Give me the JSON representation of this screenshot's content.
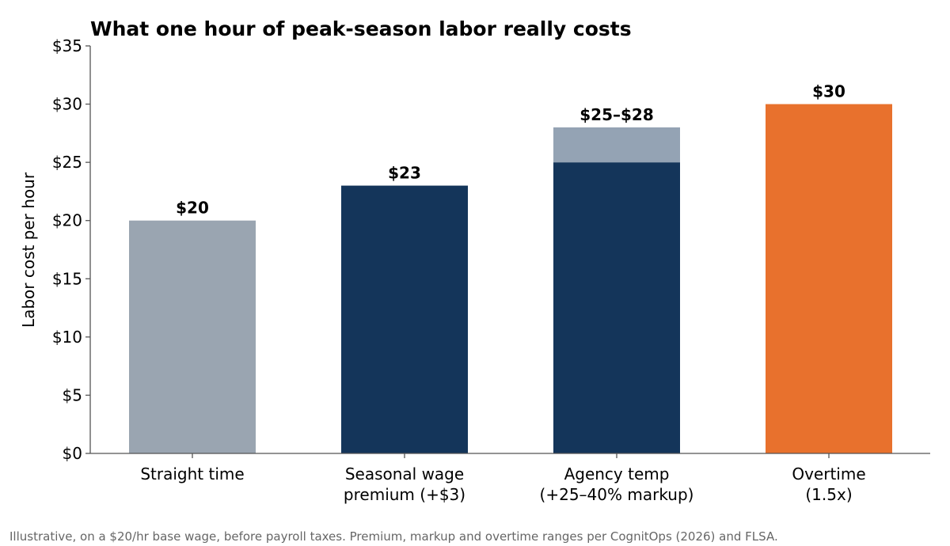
{
  "chart_data": {
    "type": "bar",
    "title": "What one hour of peak-season labor really costs",
    "ylabel": "Labor cost per hour",
    "xlabel": "",
    "ylim": [
      0,
      35
    ],
    "yticks": [
      0,
      5,
      10,
      15,
      20,
      25,
      30,
      35
    ],
    "ytick_labels": [
      "$0",
      "$5",
      "$10",
      "$15",
      "$20",
      "$25",
      "$30",
      "$35"
    ],
    "categories": [
      [
        "Straight time"
      ],
      [
        "Seasonal wage",
        "premium (+$3)"
      ],
      [
        "Agency temp",
        "(+25–40% markup)"
      ],
      [
        "Overtime",
        "(1.5x)"
      ]
    ],
    "bars": [
      {
        "low": 20,
        "high": 20,
        "label": "$20",
        "color": "#9aa5b1"
      },
      {
        "low": 23,
        "high": 23,
        "label": "$23",
        "color": "#14355a"
      },
      {
        "low": 25,
        "high": 28,
        "label": "$25–$28",
        "color": "#14355a",
        "range_color": "#94a3b4"
      },
      {
        "low": 30,
        "high": 30,
        "label": "$30",
        "color": "#e8712d"
      }
    ],
    "grid": false,
    "legend": "none"
  },
  "footnote": "Illustrative, on a $20/hr base wage, before payroll taxes. Premium, markup and overtime ranges per CognitOps (2026) and FLSA."
}
